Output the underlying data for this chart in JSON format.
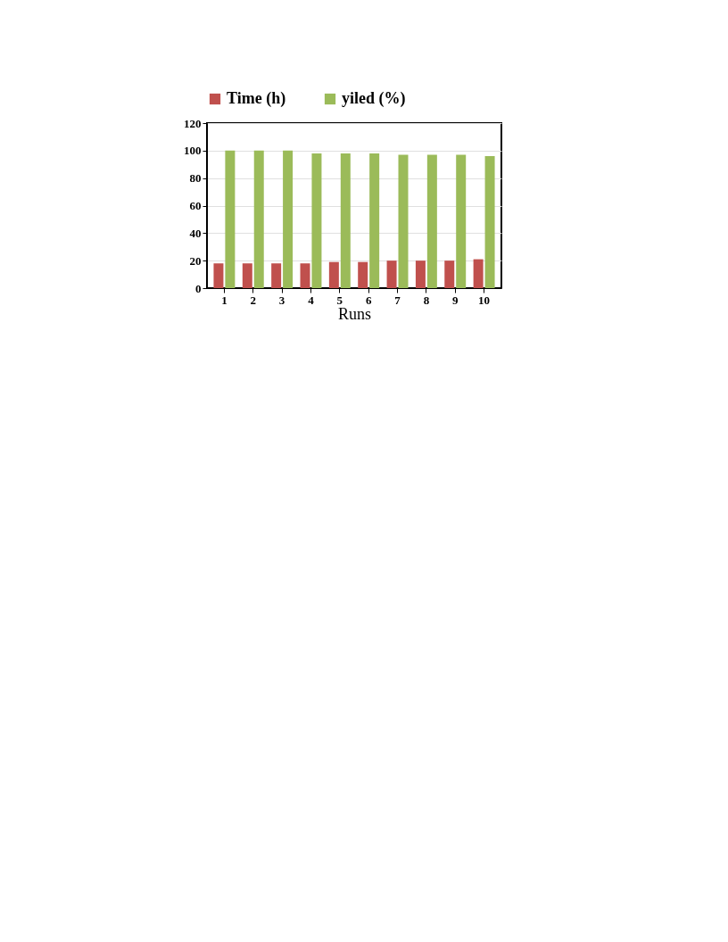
{
  "chart_data": {
    "type": "bar",
    "xlabel": "Runs",
    "categories": [
      "1",
      "2",
      "3",
      "4",
      "5",
      "6",
      "7",
      "8",
      "9",
      "10"
    ],
    "series": [
      {
        "name": "Time (h)",
        "color": "#c0504d",
        "values": [
          18,
          18,
          18,
          18,
          19,
          19,
          20,
          20,
          20,
          21
        ]
      },
      {
        "name": "yiled (%)",
        "color": "#9bbb59",
        "values": [
          100,
          100,
          100,
          98,
          98,
          98,
          97,
          97,
          97,
          96
        ]
      }
    ],
    "ylim": [
      0,
      120
    ],
    "yticks": [
      0,
      20,
      40,
      60,
      80,
      100,
      120
    ],
    "grid": "y",
    "legend": "top"
  }
}
